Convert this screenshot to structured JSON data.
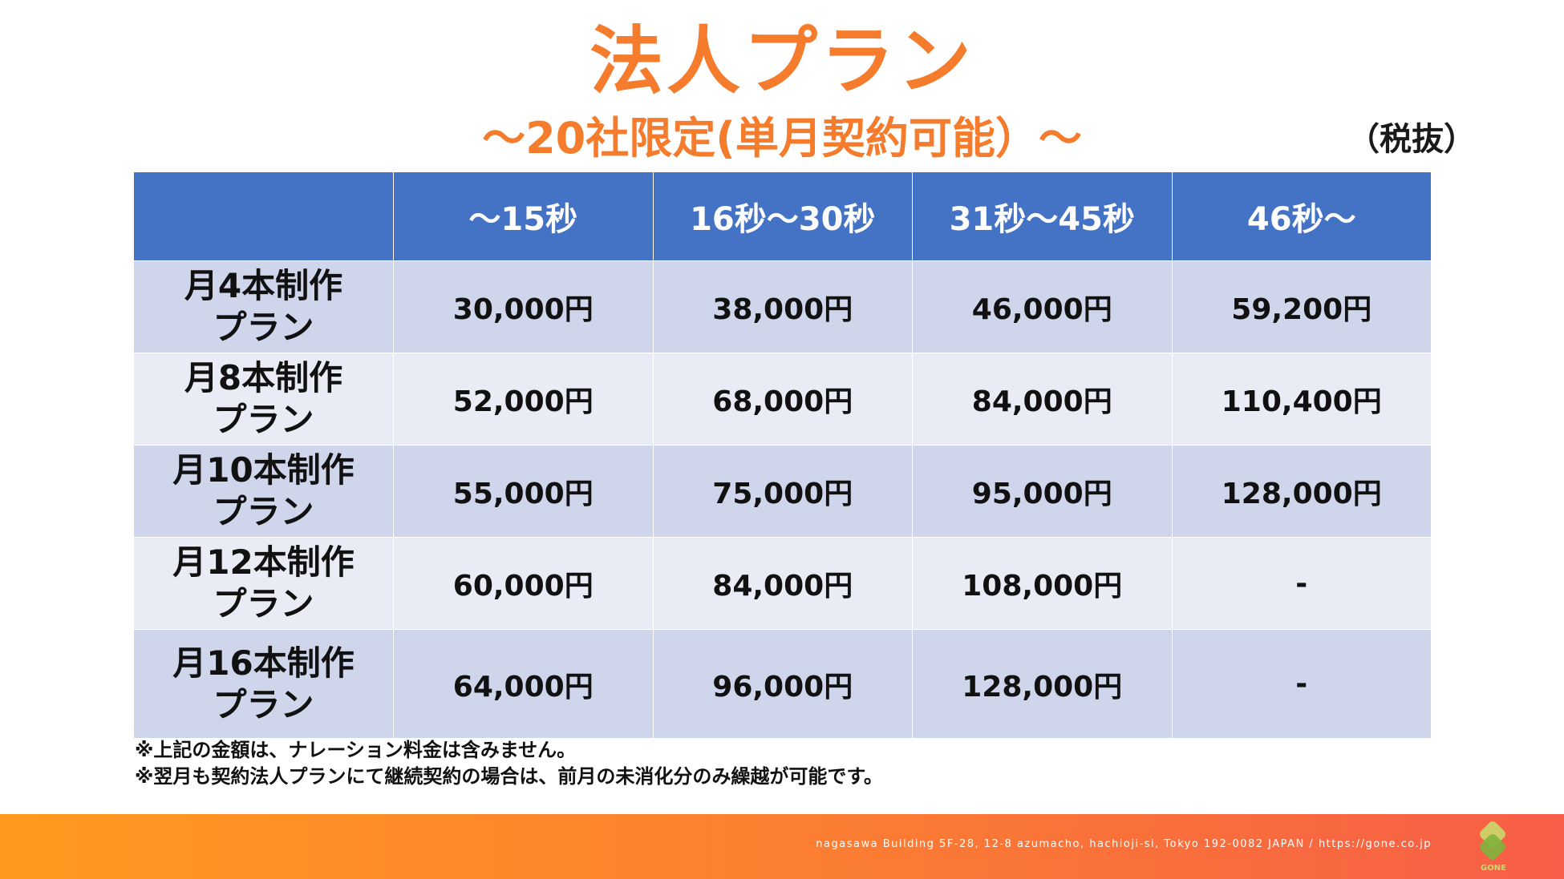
{
  "title": "法人プラン",
  "subtitle": "〜20社限定(単月契約可能）〜",
  "tax_note": "（税抜）",
  "table": {
    "columns": [
      "",
      "〜15秒",
      "16秒〜30秒",
      "31秒〜45秒",
      "46秒〜"
    ],
    "rows": [
      {
        "plan": [
          "月4本制作",
          "プラン"
        ],
        "prices": [
          "30,000円",
          "38,000円",
          "46,000円",
          "59,200円"
        ]
      },
      {
        "plan": [
          "月8本制作",
          "プラン"
        ],
        "prices": [
          "52,000円",
          "68,000円",
          "84,000円",
          "110,400円"
        ]
      },
      {
        "plan": [
          "月10本制作",
          "プラン"
        ],
        "prices": [
          "55,000円",
          "75,000円",
          "95,000円",
          "128,000円"
        ]
      },
      {
        "plan": [
          "月12本制作",
          "プラン"
        ],
        "prices": [
          "60,000円",
          "84,000円",
          "108,000円",
          "-"
        ]
      },
      {
        "plan": [
          "月16本制作",
          "プラン"
        ],
        "prices": [
          "64,000円",
          "96,000円",
          "128,000円",
          "-"
        ]
      }
    ]
  },
  "notes": [
    "※上記の金額は、ナレーション料金は含みません。",
    "※翌月も契約法人プランにて継続契約の場合は、前月の未消化分のみ繰越が可能です。"
  ],
  "footer": {
    "address": "nagasawa Building 5F-28, 12-8 azumacho, hachioji-si, Tokyo 192-0082 JAPAN  /  https://gone.co.jp",
    "logo_text": "GONE",
    "logo_icon": "gone-logo-icon",
    "gradient_colors": [
      "#ff9a1e",
      "#f75e47"
    ]
  },
  "colors": {
    "accent": "#f47c2c",
    "header_bg": "#4472c4",
    "row_dark": "#cfd5ea",
    "row_light": "#e9ebf5"
  }
}
